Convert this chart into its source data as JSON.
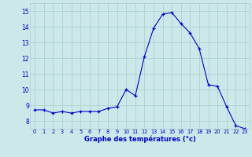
{
  "hours": [
    0,
    1,
    2,
    3,
    4,
    5,
    6,
    7,
    8,
    9,
    10,
    11,
    12,
    13,
    14,
    15,
    16,
    17,
    18,
    19,
    20,
    21,
    22,
    23
  ],
  "temps": [
    8.7,
    8.7,
    8.5,
    8.6,
    8.5,
    8.6,
    8.6,
    8.6,
    8.8,
    8.9,
    10.0,
    9.6,
    12.1,
    13.9,
    14.8,
    14.9,
    14.2,
    13.6,
    12.6,
    10.3,
    10.2,
    8.9,
    7.7,
    7.5
  ],
  "xlim": [
    -0.5,
    23.5
  ],
  "ylim": [
    7.5,
    15.5
  ],
  "yticks": [
    8,
    9,
    10,
    11,
    12,
    13,
    14,
    15
  ],
  "xticks": [
    0,
    1,
    2,
    3,
    4,
    5,
    6,
    7,
    8,
    9,
    10,
    11,
    12,
    13,
    14,
    15,
    16,
    17,
    18,
    19,
    20,
    21,
    22,
    23
  ],
  "xlabel": "Graphe des températures (°c)",
  "line_color": "#0000cc",
  "marker": "+",
  "bg_color": "#cce8e8",
  "grid_color": "#aacccc",
  "tick_color": "#0000cc",
  "xlabel_color": "#0000cc"
}
